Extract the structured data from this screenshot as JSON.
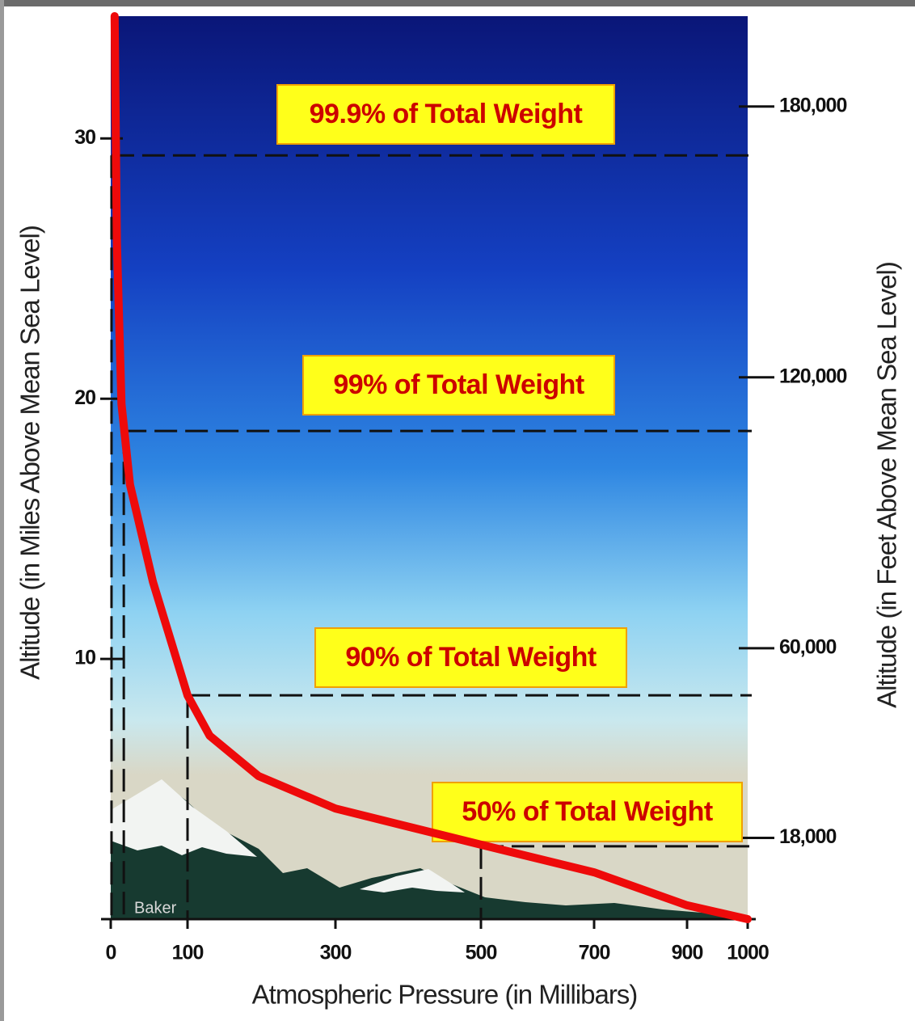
{
  "chart_data": {
    "type": "line",
    "x_label": "Atmospheric Pressure (in Millibars)",
    "y_label": "Altitude (in Miles Above Mean Sea Level)",
    "y2_label": "Altitude (in Feet Above Mean Sea Level)",
    "x": [
      5,
      8,
      14,
      25,
      55,
      100,
      130,
      196,
      300,
      500,
      700,
      900,
      1000
    ],
    "series": [
      {
        "color": "#ee0a0a",
        "values": [
          34.7,
          26,
          19.8,
          16.7,
          12.95,
          8.6,
          7.05,
          5.5,
          4.25,
          2.86,
          1.8,
          0.53,
          0
        ]
      }
    ],
    "xlim": [
      0,
      1000
    ],
    "xticks": [
      0,
      100,
      300,
      500,
      700,
      900,
      1000
    ],
    "ylim": [
      0,
      34.7
    ],
    "yticks": [
      10,
      20,
      30
    ],
    "y2lim": [
      0,
      200000
    ],
    "y2ticks": [
      {
        "value": 18000,
        "label": "18,000"
      },
      {
        "value": 60000,
        "label": "60,000"
      },
      {
        "value": 120000,
        "label": "120,000"
      },
      {
        "value": 180000,
        "label": "180,000"
      }
    ],
    "annotations": [
      {
        "text": "99.9% of Total Weight",
        "pressure": 1,
        "altitude": 29.35
      },
      {
        "text": "99% of Total Weight",
        "pressure": 17,
        "altitude": 18.76
      },
      {
        "text": "90% of Total Weight",
        "pressure": 100,
        "altitude": 8.6
      },
      {
        "text": "50% of Total Weight",
        "pressure": 500,
        "altitude": 2.8
      }
    ],
    "mountain_label": "Baker"
  }
}
